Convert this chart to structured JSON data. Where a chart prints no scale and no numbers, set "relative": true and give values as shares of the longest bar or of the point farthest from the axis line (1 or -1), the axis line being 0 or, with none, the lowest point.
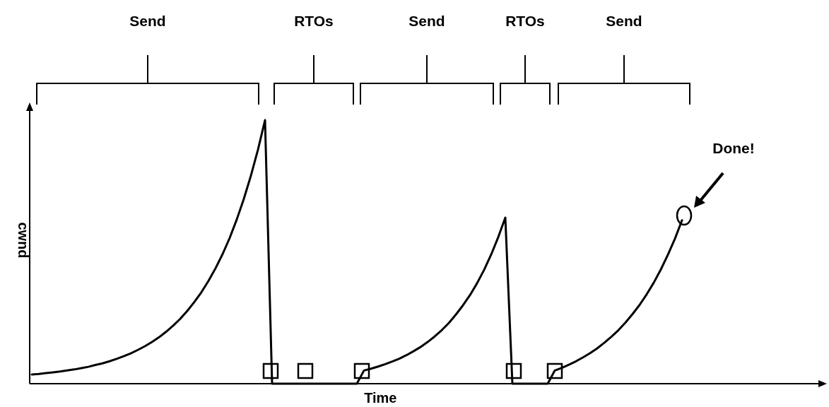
{
  "chart_data": {
    "type": "line",
    "relative": true,
    "xlabel": "Time",
    "ylabel": "cwnd",
    "annotations": [
      "Send",
      "RTOs",
      "Send",
      "RTOs",
      "Send",
      "Done!"
    ],
    "categories": [
      null,
      null,
      null,
      null,
      null,
      null,
      null,
      null,
      null,
      null,
      null,
      null,
      null,
      null,
      null,
      null,
      null,
      null,
      null,
      null,
      null,
      null,
      null,
      null,
      null,
      null,
      null,
      null,
      null,
      null,
      null,
      null,
      null,
      null,
      null,
      null,
      null,
      null,
      null,
      null,
      null,
      null,
      null,
      null,
      null,
      null,
      null,
      null,
      null,
      null,
      null,
      null,
      null,
      null,
      null,
      null,
      null,
      null,
      null,
      null,
      null,
      null,
      null,
      null,
      null,
      null,
      null,
      null,
      null,
      null,
      null,
      null,
      null,
      null,
      null,
      null,
      null,
      null,
      null,
      null,
      null,
      null,
      null,
      null,
      null,
      null,
      null,
      null,
      null,
      null,
      null,
      null,
      null,
      null,
      null,
      null,
      null,
      null,
      null,
      null,
      null,
      null,
      null,
      null,
      null,
      null,
      null,
      null,
      null,
      null,
      null,
      null,
      null
    ],
    "series": [
      {
        "color": "#000000",
        "values": [
          0.035,
          0.037,
          0.04,
          0.043,
          0.046,
          0.05,
          0.054,
          0.059,
          0.064,
          0.071,
          0.077,
          0.085,
          0.094,
          0.104,
          0.115,
          0.128,
          0.142,
          0.158,
          0.176,
          0.197,
          0.22,
          0.246,
          0.276,
          0.31,
          0.347,
          0.39,
          0.438,
          0.492,
          0.553,
          0.623,
          0.701,
          0.789,
          0.888,
          1,
          0,
          0,
          0,
          0,
          0,
          0,
          0,
          0,
          0,
          0,
          0,
          0,
          0,
          0.05,
          0.057,
          0.065,
          0.074,
          0.084,
          0.095,
          0.108,
          0.123,
          0.139,
          0.158,
          0.179,
          0.203,
          0.23,
          0.262,
          0.297,
          0.336,
          0.381,
          0.432,
          0.49,
          0.556,
          0.63,
          0,
          0,
          0,
          0,
          0,
          0,
          0.05,
          0.06,
          0.072,
          0.085,
          0.1,
          0.116,
          0.134,
          0.155,
          0.178,
          0.203,
          0.232,
          0.264,
          0.299,
          0.339,
          0.383,
          0.433,
          0.489,
          0.55,
          0.62,
          null,
          null,
          null,
          null,
          null,
          null,
          null,
          null,
          null,
          null,
          null,
          null,
          null,
          null,
          null,
          null,
          null,
          null,
          null,
          null
        ]
      }
    ]
  }
}
